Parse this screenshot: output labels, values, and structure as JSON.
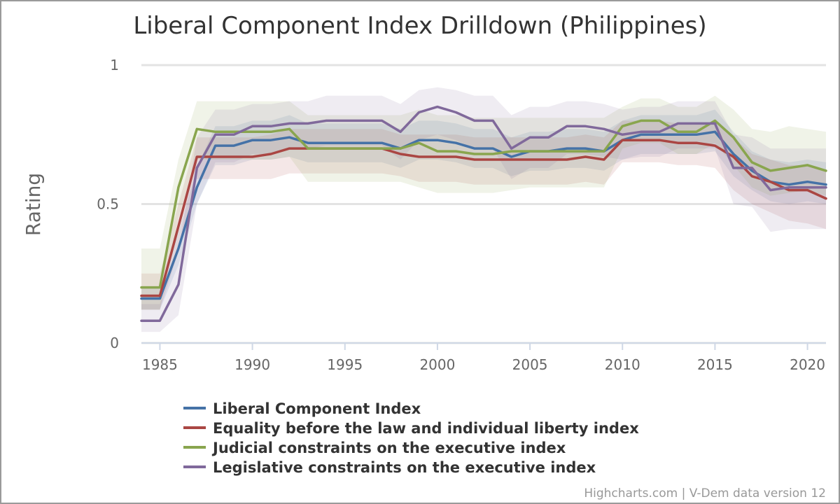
{
  "chart_data": {
    "type": "line",
    "title": "Liberal Component Index Drilldown (Philippines)",
    "xlabel": "",
    "ylabel": "Rating",
    "xlim": [
      1984,
      2021
    ],
    "ylim": [
      0,
      1
    ],
    "x_ticks": [
      1985,
      1990,
      1995,
      2000,
      2005,
      2010,
      2015,
      2020
    ],
    "y_ticks": [
      0,
      0.5,
      1
    ],
    "y_tick_labels": [
      "0",
      "0.5",
      "1"
    ],
    "grid": true,
    "legend_position": "bottom",
    "credits": "Highcharts.com | V-Dem data version 12",
    "x": [
      1984,
      1985,
      1986,
      1987,
      1988,
      1989,
      1990,
      1991,
      1992,
      1993,
      1994,
      1995,
      1996,
      1997,
      1998,
      1999,
      2000,
      2001,
      2002,
      2003,
      2004,
      2005,
      2006,
      2007,
      2008,
      2009,
      2010,
      2011,
      2012,
      2013,
      2014,
      2015,
      2016,
      2017,
      2018,
      2019,
      2020,
      2021
    ],
    "series": [
      {
        "name": "Liberal Component Index",
        "color": "#4572A7",
        "values": [
          0.16,
          0.16,
          0.34,
          0.56,
          0.71,
          0.71,
          0.73,
          0.73,
          0.74,
          0.72,
          0.72,
          0.72,
          0.72,
          0.72,
          0.7,
          0.73,
          0.73,
          0.72,
          0.7,
          0.7,
          0.67,
          0.69,
          0.69,
          0.7,
          0.7,
          0.69,
          0.73,
          0.75,
          0.75,
          0.75,
          0.75,
          0.76,
          0.68,
          0.62,
          0.58,
          0.57,
          0.58,
          0.57
        ],
        "low": [
          0.12,
          0.12,
          0.28,
          0.5,
          0.64,
          0.64,
          0.66,
          0.66,
          0.67,
          0.65,
          0.65,
          0.65,
          0.65,
          0.65,
          0.63,
          0.66,
          0.66,
          0.65,
          0.63,
          0.63,
          0.6,
          0.62,
          0.62,
          0.63,
          0.63,
          0.62,
          0.66,
          0.68,
          0.68,
          0.68,
          0.68,
          0.69,
          0.6,
          0.55,
          0.51,
          0.5,
          0.51,
          0.5
        ],
        "high": [
          0.2,
          0.2,
          0.4,
          0.63,
          0.78,
          0.78,
          0.8,
          0.8,
          0.82,
          0.79,
          0.79,
          0.79,
          0.79,
          0.79,
          0.77,
          0.8,
          0.8,
          0.79,
          0.77,
          0.77,
          0.74,
          0.76,
          0.76,
          0.77,
          0.77,
          0.76,
          0.8,
          0.82,
          0.82,
          0.82,
          0.82,
          0.84,
          0.76,
          0.69,
          0.66,
          0.65,
          0.66,
          0.65
        ]
      },
      {
        "name": "Equality before the law and individual liberty index",
        "color": "#AA4643",
        "values": [
          0.17,
          0.17,
          0.42,
          0.67,
          0.67,
          0.67,
          0.67,
          0.68,
          0.7,
          0.7,
          0.7,
          0.7,
          0.7,
          0.7,
          0.68,
          0.67,
          0.67,
          0.67,
          0.66,
          0.66,
          0.66,
          0.66,
          0.66,
          0.66,
          0.67,
          0.66,
          0.73,
          0.73,
          0.73,
          0.72,
          0.72,
          0.71,
          0.67,
          0.6,
          0.58,
          0.55,
          0.55,
          0.52
        ],
        "low": [
          0.12,
          0.12,
          0.33,
          0.59,
          0.59,
          0.59,
          0.59,
          0.59,
          0.61,
          0.61,
          0.61,
          0.61,
          0.61,
          0.61,
          0.6,
          0.58,
          0.58,
          0.58,
          0.57,
          0.57,
          0.57,
          0.57,
          0.57,
          0.57,
          0.58,
          0.57,
          0.65,
          0.65,
          0.65,
          0.64,
          0.64,
          0.63,
          0.55,
          0.5,
          0.47,
          0.44,
          0.43,
          0.41
        ],
        "high": [
          0.25,
          0.25,
          0.5,
          0.74,
          0.74,
          0.74,
          0.74,
          0.75,
          0.77,
          0.77,
          0.77,
          0.77,
          0.77,
          0.77,
          0.75,
          0.75,
          0.75,
          0.75,
          0.74,
          0.74,
          0.74,
          0.74,
          0.74,
          0.74,
          0.75,
          0.74,
          0.8,
          0.8,
          0.8,
          0.79,
          0.79,
          0.79,
          0.74,
          0.68,
          0.66,
          0.64,
          0.64,
          0.62
        ]
      },
      {
        "name": "Judicial constraints on the executive index",
        "color": "#89A54E",
        "values": [
          0.2,
          0.2,
          0.56,
          0.77,
          0.76,
          0.76,
          0.76,
          0.76,
          0.77,
          0.7,
          0.7,
          0.7,
          0.7,
          0.7,
          0.7,
          0.72,
          0.69,
          0.69,
          0.68,
          0.68,
          0.69,
          0.69,
          0.69,
          0.69,
          0.69,
          0.69,
          0.78,
          0.8,
          0.8,
          0.76,
          0.76,
          0.8,
          0.74,
          0.65,
          0.62,
          0.63,
          0.64,
          0.62
        ],
        "low": [
          0.12,
          0.12,
          0.45,
          0.66,
          0.66,
          0.66,
          0.66,
          0.66,
          0.67,
          0.58,
          0.58,
          0.58,
          0.58,
          0.58,
          0.58,
          0.56,
          0.54,
          0.54,
          0.54,
          0.54,
          0.55,
          0.56,
          0.56,
          0.56,
          0.56,
          0.56,
          0.7,
          0.72,
          0.72,
          0.68,
          0.68,
          0.72,
          0.64,
          0.56,
          0.53,
          0.54,
          0.55,
          0.53
        ],
        "high": [
          0.34,
          0.34,
          0.66,
          0.87,
          0.87,
          0.87,
          0.87,
          0.87,
          0.87,
          0.82,
          0.82,
          0.82,
          0.82,
          0.82,
          0.82,
          0.84,
          0.82,
          0.82,
          0.81,
          0.81,
          0.81,
          0.81,
          0.81,
          0.81,
          0.81,
          0.81,
          0.85,
          0.88,
          0.88,
          0.85,
          0.85,
          0.89,
          0.84,
          0.77,
          0.76,
          0.78,
          0.77,
          0.76
        ]
      },
      {
        "name": "Legislative constraints on the executive index",
        "color": "#80699B",
        "values": [
          0.08,
          0.08,
          0.21,
          0.63,
          0.75,
          0.75,
          0.78,
          0.78,
          0.79,
          0.79,
          0.8,
          0.8,
          0.8,
          0.8,
          0.76,
          0.83,
          0.85,
          0.83,
          0.8,
          0.8,
          0.7,
          0.74,
          0.74,
          0.78,
          0.78,
          0.77,
          0.75,
          0.76,
          0.76,
          0.79,
          0.79,
          0.79,
          0.63,
          0.63,
          0.55,
          0.56,
          0.56,
          0.56
        ],
        "low": [
          0.04,
          0.04,
          0.1,
          0.5,
          0.65,
          0.65,
          0.68,
          0.68,
          0.7,
          0.7,
          0.71,
          0.71,
          0.71,
          0.71,
          0.66,
          0.73,
          0.75,
          0.73,
          0.7,
          0.7,
          0.59,
          0.63,
          0.63,
          0.68,
          0.68,
          0.67,
          0.66,
          0.67,
          0.67,
          0.7,
          0.7,
          0.7,
          0.5,
          0.49,
          0.4,
          0.41,
          0.41,
          0.41
        ],
        "high": [
          0.14,
          0.14,
          0.33,
          0.74,
          0.84,
          0.84,
          0.86,
          0.86,
          0.87,
          0.87,
          0.89,
          0.89,
          0.89,
          0.89,
          0.86,
          0.91,
          0.92,
          0.91,
          0.89,
          0.89,
          0.82,
          0.85,
          0.85,
          0.87,
          0.87,
          0.86,
          0.84,
          0.85,
          0.85,
          0.87,
          0.87,
          0.87,
          0.75,
          0.74,
          0.7,
          0.7,
          0.7,
          0.7
        ]
      }
    ]
  }
}
